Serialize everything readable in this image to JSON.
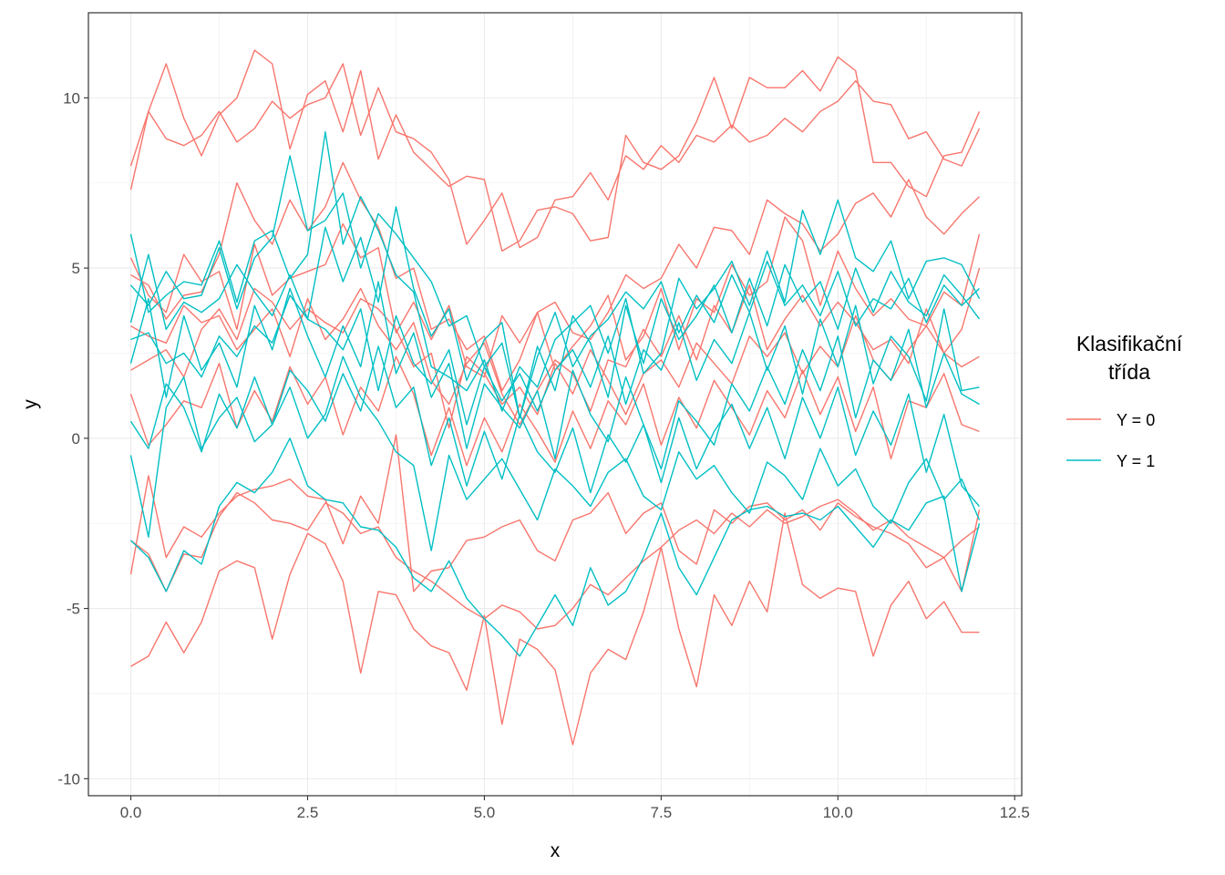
{
  "chart_data": {
    "type": "line",
    "xlabel": "x",
    "ylabel": "y",
    "xlim": [
      -0.6,
      12.6
    ],
    "ylim": [
      -10.5,
      12.5
    ],
    "x_ticks": [
      0.0,
      2.5,
      5.0,
      7.5,
      10.0,
      12.5
    ],
    "x_tick_labels": [
      "0.0",
      "2.5",
      "5.0",
      "7.5",
      "10.0",
      "12.5"
    ],
    "y_ticks": [
      -10,
      -5,
      0,
      5,
      10
    ],
    "y_tick_labels": [
      "-10",
      "-5",
      "0",
      "5",
      "10"
    ],
    "grid": true,
    "legend": {
      "title_lines": [
        "Klasifikační",
        "třída"
      ],
      "placement": "right",
      "entries": [
        {
          "label": "Y = 0",
          "color": "#F8766D"
        },
        {
          "label": "Y = 1",
          "color": "#00BFC4"
        }
      ]
    },
    "x": [
      0,
      0.25,
      0.5,
      0.75,
      1,
      1.25,
      1.5,
      1.75,
      2,
      2.25,
      2.5,
      2.75,
      3,
      3.25,
      3.5,
      3.75,
      4,
      4.25,
      4.5,
      4.75,
      5,
      5.25,
      5.5,
      5.75,
      6,
      6.25,
      6.5,
      6.75,
      7,
      7.25,
      7.5,
      7.75,
      8,
      8.25,
      8.5,
      8.75,
      9,
      9.25,
      9.5,
      9.75,
      10,
      10.25,
      10.5,
      10.75,
      11,
      11.25,
      11.5,
      11.75,
      12
    ],
    "series": [
      {
        "class": "Y = 0",
        "values": [
          8.0,
          9.6,
          11.0,
          9.4,
          8.3,
          9.5,
          10.0,
          11.4,
          11.0,
          8.5,
          10.1,
          10.5,
          9.0,
          10.8,
          8.2,
          9.5,
          8.4,
          7.9,
          7.4,
          7.7,
          7.6,
          5.5,
          5.8,
          6.7,
          6.8,
          6.6,
          5.8,
          5.9,
          8.9,
          8.1,
          7.9,
          8.3,
          9.3,
          10.6,
          9.1,
          10.6,
          10.3,
          10.3,
          10.8,
          10.2,
          11.2,
          10.8,
          8.1,
          8.1,
          7.4,
          7.1,
          8.3,
          8.4,
          9.6
        ]
      },
      {
        "class": "Y = 0",
        "values": [
          7.3,
          9.6,
          8.8,
          8.6,
          8.9,
          9.6,
          8.7,
          9.1,
          9.9,
          9.4,
          9.8,
          10.0,
          11.0,
          8.9,
          10.3,
          9.0,
          8.8,
          8.4,
          7.6,
          5.7,
          6.4,
          7.2,
          5.6,
          5.9,
          7.0,
          7.1,
          7.8,
          7.0,
          8.3,
          7.9,
          8.6,
          8.1,
          8.9,
          8.7,
          9.2,
          8.7,
          8.9,
          9.4,
          9.0,
          9.6,
          9.9,
          10.5,
          9.9,
          9.8,
          8.8,
          9.0,
          8.2,
          8.0,
          9.1
        ]
      },
      {
        "class": "Y = 0",
        "values": [
          4.8,
          4.5,
          3.5,
          4.2,
          4.3,
          5.4,
          7.5,
          6.4,
          5.7,
          7.0,
          6.1,
          6.8,
          8.1,
          7.0,
          6.2,
          4.7,
          5.0,
          3.2,
          3.5,
          2.6,
          3.0,
          1.4,
          2.3,
          3.7,
          4.0,
          3.1,
          2.9,
          3.7,
          4.8,
          4.4,
          4.7,
          5.7,
          5.0,
          6.2,
          6.1,
          5.4,
          7.0,
          6.6,
          6.3,
          5.5,
          6.0,
          6.9,
          7.2,
          6.5,
          7.6,
          6.5,
          6.0,
          6.6,
          7.1
        ]
      },
      {
        "class": "Y = 0",
        "values": [
          5.3,
          4.2,
          3.7,
          5.4,
          4.6,
          4.9,
          3.2,
          5.7,
          4.2,
          4.7,
          4.9,
          5.1,
          6.3,
          5.3,
          5.6,
          3.1,
          4.0,
          2.9,
          3.9,
          2.1,
          1.8,
          3.6,
          2.8,
          3.7,
          2.0,
          2.7,
          3.3,
          4.2,
          2.3,
          3.0,
          4.4,
          2.6,
          4.1,
          3.7,
          5.1,
          4.2,
          4.6,
          6.5,
          5.8,
          3.9,
          5.5,
          4.4,
          3.6,
          4.1,
          3.5,
          3.3,
          4.3,
          3.9,
          6.0
        ]
      },
      {
        "class": "Y = 0",
        "values": [
          3.3,
          3.0,
          2.8,
          3.9,
          3.4,
          3.6,
          2.6,
          3.2,
          3.8,
          2.4,
          4.1,
          2.9,
          3.5,
          4.4,
          3.3,
          2.6,
          3.4,
          1.7,
          1.0,
          2.2,
          2.8,
          1.3,
          0.4,
          1.4,
          2.3,
          1.9,
          0.8,
          2.3,
          2.1,
          3.2,
          2.4,
          3.6,
          2.3,
          3.9,
          3.1,
          4.5,
          2.6,
          3.5,
          4.2,
          3.3,
          4.0,
          3.4,
          2.6,
          2.9,
          2.2,
          3.8,
          2.5,
          3.2,
          5.0
        ]
      },
      {
        "class": "Y = 0",
        "values": [
          2.0,
          2.3,
          2.6,
          1.8,
          3.2,
          3.8,
          2.9,
          4.4,
          4.0,
          3.2,
          3.8,
          3.4,
          3.1,
          4.1,
          3.8,
          3.2,
          2.1,
          2.5,
          0.3,
          2.4,
          1.9,
          1.0,
          1.5,
          0.7,
          2.2,
          1.3,
          2.6,
          1.7,
          0.7,
          1.9,
          2.3,
          1.5,
          2.8,
          2.2,
          1.6,
          3.0,
          2.4,
          3.1,
          1.9,
          2.7,
          2.1,
          3.6,
          2.3,
          1.7,
          2.6,
          3.3,
          2.5,
          2.1,
          2.4
        ]
      },
      {
        "class": "Y = 0",
        "values": [
          1.3,
          -0.2,
          0.4,
          1.1,
          0.9,
          2.2,
          0.3,
          1.4,
          0.5,
          2.1,
          1.0,
          1.8,
          0.1,
          1.5,
          0.8,
          2.4,
          1.3,
          -0.5,
          0.9,
          -0.8,
          0.6,
          -0.4,
          1.0,
          0.2,
          -0.7,
          0.8,
          -0.3,
          1.1,
          0.4,
          1.6,
          -0.2,
          1.2,
          0.3,
          1.7,
          0.9,
          0.1,
          1.4,
          0.6,
          2.0,
          0.7,
          1.8,
          0.2,
          1.5,
          -0.6,
          1.1,
          0.9,
          1.9,
          0.4,
          0.2
        ]
      },
      {
        "class": "Y = 0",
        "values": [
          -4.0,
          -1.1,
          -3.5,
          -2.6,
          -2.9,
          -2.2,
          -1.7,
          -1.5,
          -1.4,
          -1.2,
          -1.7,
          -1.8,
          -3.1,
          -1.7,
          -2.5,
          0.1,
          -4.5,
          -3.9,
          -3.8,
          -3.0,
          -2.9,
          -2.6,
          -2.4,
          -3.3,
          -3.6,
          -2.4,
          -2.2,
          -1.6,
          -2.8,
          -2.2,
          -1.9,
          -3.3,
          -3.7,
          -2.1,
          -2.5,
          -2.0,
          -1.9,
          -2.4,
          -2.1,
          -2.7,
          -1.9,
          -2.3,
          -2.6,
          -2.8,
          -3.1,
          -3.8,
          -3.5,
          -4.5,
          -2.1
        ]
      },
      {
        "class": "Y = 0",
        "values": [
          -6.7,
          -6.4,
          -5.4,
          -6.3,
          -5.4,
          -3.9,
          -3.6,
          -3.8,
          -5.9,
          -4.0,
          -2.8,
          -3.1,
          -4.2,
          -6.9,
          -4.5,
          -4.6,
          -5.6,
          -6.1,
          -6.3,
          -7.4,
          -5.2,
          -8.4,
          -5.9,
          -6.2,
          -6.8,
          -9.0,
          -6.9,
          -6.2,
          -6.5,
          -5.1,
          -3.2,
          -5.6,
          -7.3,
          -4.6,
          -5.5,
          -4.2,
          -5.1,
          -2.2,
          -4.3,
          -4.7,
          -4.4,
          -4.5,
          -6.4,
          -4.9,
          -4.2,
          -5.3,
          -4.8,
          -5.7,
          -5.7
        ]
      },
      {
        "class": "Y = 0",
        "values": [
          -3.0,
          -3.4,
          -4.5,
          -3.4,
          -3.5,
          -2.3,
          -1.6,
          -1.9,
          -2.4,
          -2.5,
          -2.7,
          -1.9,
          -2.2,
          -2.8,
          -2.6,
          -3.5,
          -3.9,
          -4.2,
          -4.6,
          -5.0,
          -5.3,
          -4.9,
          -5.1,
          -5.6,
          -5.5,
          -5.0,
          -4.3,
          -4.6,
          -4.1,
          -3.6,
          -3.2,
          -2.7,
          -2.4,
          -2.8,
          -2.2,
          -2.6,
          -2.1,
          -2.5,
          -2.3,
          -2.0,
          -1.8,
          -2.2,
          -2.7,
          -2.4,
          -2.9,
          -3.2,
          -3.5,
          -3.0,
          -2.6
        ]
      },
      {
        "class": "Y = 1",
        "values": [
          6.0,
          3.7,
          4.2,
          4.6,
          4.5,
          5.8,
          4.0,
          5.8,
          6.1,
          4.7,
          5.4,
          9.0,
          5.7,
          7.1,
          6.1,
          4.8,
          4.3,
          2.1,
          1.8,
          1.4,
          2.3,
          0.8,
          2.1,
          1.5,
          2.9,
          3.4,
          3.9,
          2.5,
          4.1,
          1.9,
          2.5,
          4.7,
          3.8,
          4.4,
          5.2,
          3.9,
          5.5,
          4.0,
          6.7,
          5.4,
          7.0,
          5.3,
          4.9,
          5.8,
          4.1,
          5.2,
          5.3,
          5.1,
          4.1
        ]
      },
      {
        "class": "Y = 1",
        "values": [
          4.5,
          3.9,
          4.9,
          4.1,
          4.2,
          5.6,
          3.8,
          5.3,
          5.9,
          8.3,
          6.1,
          6.4,
          7.2,
          5.0,
          6.6,
          6.0,
          5.3,
          4.6,
          3.3,
          3.6,
          2.1,
          2.8,
          0.6,
          2.4,
          3.7,
          2.1,
          3.0,
          3.5,
          4.3,
          3.8,
          4.6,
          3.1,
          4.2,
          3.4,
          4.8,
          3.7,
          5.2,
          3.9,
          4.5,
          3.6,
          4.9,
          3.3,
          4.1,
          3.8,
          4.7,
          3.4,
          4.5,
          3.9,
          4.4
        ]
      },
      {
        "class": "Y = 1",
        "values": [
          3.4,
          5.4,
          3.2,
          4.0,
          3.7,
          4.1,
          5.1,
          4.3,
          3.6,
          4.8,
          3.5,
          6.2,
          4.6,
          5.9,
          4.0,
          6.8,
          4.4,
          3.0,
          3.8,
          1.7,
          2.9,
          3.4,
          0.6,
          2.7,
          1.4,
          3.6,
          2.8,
          1.2,
          3.9,
          2.2,
          4.1,
          2.9,
          3.6,
          4.5,
          3.1,
          4.7,
          3.3,
          5.1,
          4.0,
          4.6,
          3.2,
          5.0,
          3.7,
          4.9,
          4.0,
          3.6,
          4.8,
          4.2,
          3.5
        ]
      },
      {
        "class": "Y = 1",
        "values": [
          2.9,
          3.1,
          2.2,
          2.5,
          1.8,
          3.0,
          2.4,
          3.3,
          2.8,
          4.2,
          3.5,
          3.2,
          2.6,
          3.8,
          1.4,
          3.6,
          2.2,
          1.6,
          2.6,
          0.4,
          2.1,
          1.1,
          1.9,
          0.8,
          2.0,
          2.6,
          1.5,
          3.0,
          1.0,
          2.6,
          2.0,
          3.4,
          1.7,
          2.9,
          2.2,
          3.7,
          2.0,
          3.3,
          1.3,
          3.5,
          2.1,
          3.9,
          1.6,
          3.0,
          2.4,
          1.1,
          3.8,
          1.4,
          1.5
        ]
      },
      {
        "class": "Y = 1",
        "values": [
          2.2,
          4.1,
          1.2,
          3.6,
          2.0,
          2.8,
          1.5,
          3.9,
          2.6,
          4.4,
          3.0,
          1.8,
          3.3,
          2.1,
          4.6,
          1.9,
          3.1,
          1.2,
          2.2,
          -0.3,
          1.6,
          0.9,
          0.3,
          1.4,
          -0.6,
          2.0,
          0.7,
          -0.1,
          1.8,
          0.4,
          -0.9,
          1.1,
          0.5,
          -0.2,
          1.6,
          0.8,
          2.1,
          1.0,
          2.6,
          1.4,
          3.0,
          0.6,
          2.3,
          1.7,
          3.2,
          0.9,
          2.5,
          1.3,
          1.0
        ]
      },
      {
        "class": "Y = 1",
        "values": [
          0.5,
          -0.3,
          1.6,
          0.9,
          -0.4,
          1.3,
          0.3,
          1.8,
          0.4,
          2.0,
          1.4,
          0.5,
          1.9,
          0.8,
          2.7,
          0.9,
          1.5,
          -0.8,
          0.6,
          -1.4,
          0.2,
          -1.2,
          0.7,
          -0.4,
          -1.0,
          0.3,
          -1.6,
          0.1,
          -0.7,
          0.4,
          -1.3,
          0.6,
          -0.9,
          0.2,
          1.0,
          -0.3,
          0.9,
          -0.6,
          1.2,
          0.0,
          1.5,
          -0.5,
          0.8,
          -0.2,
          1.3,
          -1.0,
          0.7,
          -1.4,
          -2.0
        ]
      },
      {
        "class": "Y = 1",
        "values": [
          -0.5,
          -2.9,
          0.9,
          1.8,
          -0.3,
          0.6,
          1.2,
          -0.1,
          0.4,
          1.5,
          0.0,
          0.7,
          2.4,
          1.2,
          0.5,
          -0.4,
          -0.8,
          -3.3,
          -0.5,
          -1.8,
          -1.2,
          -0.6,
          -1.5,
          -2.4,
          -0.9,
          -1.4,
          -2.0,
          -1.0,
          -0.6,
          -1.7,
          -2.1,
          -0.4,
          -1.2,
          -0.8,
          -1.6,
          -2.2,
          -0.7,
          -1.1,
          -1.8,
          -0.3,
          -1.4,
          -0.9,
          -2.0,
          -2.5,
          -1.3,
          -0.6,
          -1.8,
          -1.2,
          -2.4
        ]
      },
      {
        "class": "Y = 1",
        "values": [
          -3.0,
          -3.5,
          -4.5,
          -3.3,
          -3.7,
          -2.0,
          -1.3,
          -1.6,
          -1.0,
          0.0,
          -1.4,
          -1.8,
          -1.9,
          -2.6,
          -2.7,
          -3.2,
          -4.1,
          -4.5,
          -3.6,
          -4.7,
          -5.3,
          -5.8,
          -6.4,
          -5.5,
          -4.6,
          -5.5,
          -3.8,
          -4.9,
          -4.5,
          -3.5,
          -2.2,
          -3.8,
          -4.6,
          -3.5,
          -2.4,
          -2.1,
          -2.0,
          -2.3,
          -2.2,
          -2.4,
          -2.0,
          -2.6,
          -3.2,
          -2.4,
          -2.7,
          -1.9,
          -1.7,
          -4.5,
          -2.5
        ]
      }
    ]
  }
}
